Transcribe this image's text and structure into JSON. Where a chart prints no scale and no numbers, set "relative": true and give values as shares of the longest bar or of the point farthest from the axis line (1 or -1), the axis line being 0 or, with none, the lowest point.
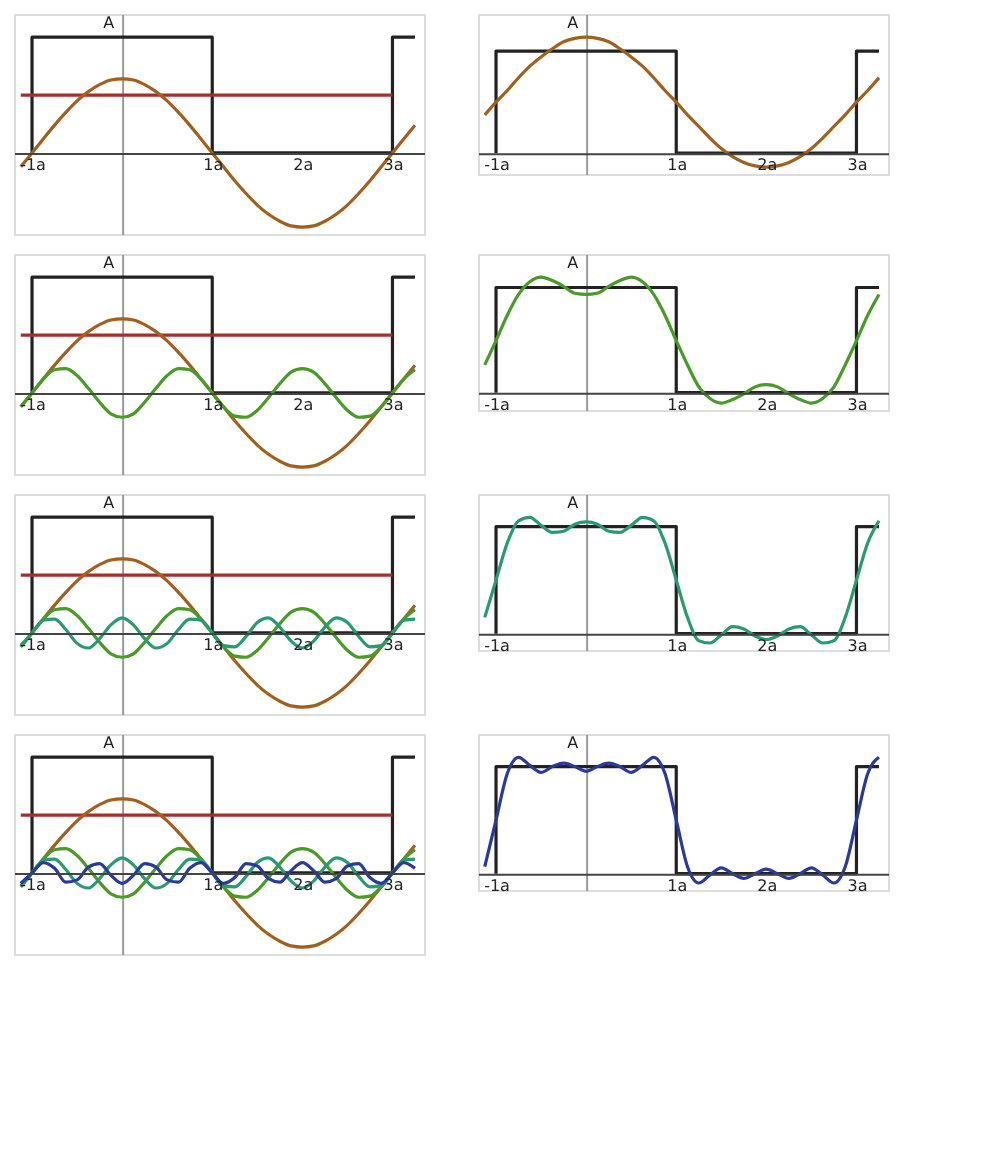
{
  "chart_data": [
    {
      "type": "line",
      "relative": true,
      "annotations": [
        "A"
      ],
      "x": [
        -1.125,
        -1,
        -0.875,
        -0.75,
        -0.625,
        -0.5,
        -0.375,
        -0.25,
        -0.125,
        0,
        0.125,
        0.25,
        0.375,
        0.5,
        0.625,
        0.75,
        0.875,
        1,
        1.125,
        1.25,
        1.375,
        1.5,
        1.625,
        1.75,
        1.875,
        2,
        2.125,
        2.25,
        2.375,
        2.5,
        2.625,
        2.75,
        2.875,
        3,
        3.125,
        3.25
      ],
      "xlim": [
        -1.2,
        3.35
      ],
      "xticks": [
        {
          "value": -1,
          "label": "-1a"
        },
        {
          "value": 1,
          "label": "1a"
        },
        {
          "value": 2,
          "label": "2a"
        },
        {
          "value": 3,
          "label": "3a"
        }
      ],
      "series": [
        {
          "color": "#222222",
          "x": [
            -1,
            -1,
            1,
            1,
            3,
            3,
            3.25
          ],
          "values": [
            0,
            1,
            1,
            0,
            0,
            1,
            1
          ]
        },
        {
          "color": "#a0322d",
          "x": [
            -1.125,
            3
          ],
          "values": [
            0.5,
            0.5
          ]
        },
        {
          "color": "#a0601e",
          "values": [
            -0.12,
            0,
            0.12,
            0.24,
            0.35,
            0.45,
            0.53,
            0.59,
            0.63,
            0.64,
            0.63,
            0.59,
            0.53,
            0.45,
            0.35,
            0.24,
            0.12,
            0,
            -0.12,
            -0.24,
            -0.35,
            -0.45,
            -0.53,
            -0.59,
            -0.63,
            -0.64,
            -0.63,
            -0.59,
            -0.53,
            -0.45,
            -0.35,
            -0.24,
            -0.12,
            0,
            0.12,
            0.24
          ]
        }
      ]
    },
    {
      "type": "line",
      "relative": true,
      "annotations": [
        "A"
      ],
      "x": [
        -1.125,
        -1,
        -0.875,
        -0.75,
        -0.625,
        -0.5,
        -0.375,
        -0.25,
        -0.125,
        0,
        0.125,
        0.25,
        0.375,
        0.5,
        0.625,
        0.75,
        0.875,
        1,
        1.125,
        1.25,
        1.375,
        1.5,
        1.625,
        1.75,
        1.875,
        2,
        2.125,
        2.25,
        2.375,
        2.5,
        2.625,
        2.75,
        2.875,
        3,
        3.125,
        3.25
      ],
      "xlim": [
        -1.2,
        3.35
      ],
      "xticks": [
        {
          "value": -1,
          "label": "-1a"
        },
        {
          "value": 1,
          "label": "1a"
        },
        {
          "value": 2,
          "label": "2a"
        },
        {
          "value": 3,
          "label": "3a"
        }
      ],
      "series": [
        {
          "color": "#222222",
          "x": [
            -1,
            -1,
            1,
            1,
            3,
            3,
            3.25
          ],
          "values": [
            0,
            0.88,
            0.88,
            0,
            0,
            0.88,
            0.88
          ]
        },
        {
          "color": "#a0601e",
          "values": [
            0.33,
            0.44,
            0.54,
            0.65,
            0.75,
            0.83,
            0.9,
            0.96,
            0.99,
            1,
            0.99,
            0.96,
            0.9,
            0.83,
            0.75,
            0.65,
            0.54,
            0.44,
            0.33,
            0.23,
            0.13,
            0.04,
            -0.03,
            -0.08,
            -0.11,
            -0.12,
            -0.11,
            -0.08,
            -0.03,
            0.04,
            0.13,
            0.23,
            0.33,
            0.44,
            0.54,
            0.65
          ]
        }
      ]
    },
    {
      "type": "line",
      "relative": true,
      "annotations": [
        "A"
      ],
      "x": [
        -1.125,
        -1,
        -0.875,
        -0.75,
        -0.625,
        -0.5,
        -0.375,
        -0.25,
        -0.125,
        0,
        0.125,
        0.25,
        0.375,
        0.5,
        0.625,
        0.75,
        0.875,
        1,
        1.125,
        1.25,
        1.375,
        1.5,
        1.625,
        1.75,
        1.875,
        2,
        2.125,
        2.25,
        2.375,
        2.5,
        2.625,
        2.75,
        2.875,
        3,
        3.125,
        3.25
      ],
      "xlim": [
        -1.2,
        3.35
      ],
      "xticks": [
        {
          "value": -1,
          "label": "-1a"
        },
        {
          "value": 1,
          "label": "1a"
        },
        {
          "value": 2,
          "label": "2a"
        },
        {
          "value": 3,
          "label": "3a"
        }
      ],
      "series": [
        {
          "color": "#222222",
          "x": [
            -1,
            -1,
            1,
            1,
            3,
            3,
            3.25
          ],
          "values": [
            0,
            1,
            1,
            0,
            0,
            1,
            1
          ]
        },
        {
          "color": "#a0322d",
          "x": [
            -1.125,
            3
          ],
          "values": [
            0.5,
            0.5
          ]
        },
        {
          "color": "#a0601e",
          "values": [
            -0.12,
            0,
            0.12,
            0.24,
            0.35,
            0.45,
            0.53,
            0.59,
            0.63,
            0.64,
            0.63,
            0.59,
            0.53,
            0.45,
            0.35,
            0.24,
            0.12,
            0,
            -0.12,
            -0.24,
            -0.35,
            -0.45,
            -0.53,
            -0.59,
            -0.63,
            -0.64,
            -0.63,
            -0.59,
            -0.53,
            -0.45,
            -0.35,
            -0.24,
            -0.12,
            0,
            0.12,
            0.24
          ]
        },
        {
          "color": "#4a9a2a",
          "values": [
            -0.12,
            0,
            0.12,
            0.2,
            0.21,
            0.15,
            0.04,
            -0.08,
            -0.18,
            -0.21,
            -0.18,
            -0.08,
            0.04,
            0.15,
            0.21,
            0.2,
            0.12,
            0,
            -0.12,
            -0.2,
            -0.21,
            -0.15,
            -0.04,
            0.08,
            0.18,
            0.21,
            0.18,
            0.08,
            -0.04,
            -0.15,
            -0.21,
            -0.2,
            -0.12,
            0,
            0.12,
            0.2
          ]
        }
      ]
    },
    {
      "type": "line",
      "relative": true,
      "annotations": [
        "A"
      ],
      "x": [
        -1.125,
        -1,
        -0.875,
        -0.75,
        -0.625,
        -0.5,
        -0.375,
        -0.25,
        -0.125,
        0,
        0.125,
        0.25,
        0.375,
        0.5,
        0.625,
        0.75,
        0.875,
        1,
        1.125,
        1.25,
        1.375,
        1.5,
        1.625,
        1.75,
        1.875,
        2,
        2.125,
        2.25,
        2.375,
        2.5,
        2.625,
        2.75,
        2.875,
        3,
        3.125,
        3.25
      ],
      "xlim": [
        -1.2,
        3.35
      ],
      "xticks": [
        {
          "value": -1,
          "label": "-1a"
        },
        {
          "value": 1,
          "label": "1a"
        },
        {
          "value": 2,
          "label": "2a"
        },
        {
          "value": 3,
          "label": "3a"
        }
      ],
      "series": [
        {
          "color": "#222222",
          "x": [
            -1,
            -1,
            1,
            1,
            3,
            3,
            3.25
          ],
          "values": [
            0,
            0.91,
            0.91,
            0,
            0,
            0.91,
            0.91
          ]
        },
        {
          "color": "#4a9a2a",
          "values": [
            0.24,
            0.45,
            0.67,
            0.85,
            0.96,
            1,
            0.97,
            0.92,
            0.86,
            0.85,
            0.86,
            0.92,
            0.97,
            1,
            0.96,
            0.85,
            0.67,
            0.45,
            0.24,
            0.05,
            -0.05,
            -0.09,
            -0.06,
            -0.01,
            0.05,
            0.07,
            0.05,
            -0.01,
            -0.06,
            -0.09,
            -0.05,
            0.05,
            0.24,
            0.45,
            0.67,
            0.85
          ]
        }
      ]
    },
    {
      "type": "line",
      "relative": true,
      "annotations": [
        "A"
      ],
      "x": [
        -1.125,
        -1,
        -0.875,
        -0.75,
        -0.625,
        -0.5,
        -0.375,
        -0.25,
        -0.125,
        0,
        0.125,
        0.25,
        0.375,
        0.5,
        0.625,
        0.75,
        0.875,
        1,
        1.125,
        1.25,
        1.375,
        1.5,
        1.625,
        1.75,
        1.875,
        2,
        2.125,
        2.25,
        2.375,
        2.5,
        2.625,
        2.75,
        2.875,
        3,
        3.125,
        3.25
      ],
      "xlim": [
        -1.2,
        3.35
      ],
      "xticks": [
        {
          "value": -1,
          "label": "-1a"
        },
        {
          "value": 1,
          "label": "1a"
        },
        {
          "value": 2,
          "label": "2a"
        },
        {
          "value": 3,
          "label": "3a"
        }
      ],
      "series": [
        {
          "color": "#222222",
          "x": [
            -1,
            -1,
            1,
            1,
            3,
            3,
            3.25
          ],
          "values": [
            0,
            1,
            1,
            0,
            0,
            1,
            1
          ]
        },
        {
          "color": "#a0322d",
          "x": [
            -1.125,
            3
          ],
          "values": [
            0.5,
            0.5
          ]
        },
        {
          "color": "#a0601e",
          "values": [
            -0.12,
            0,
            0.12,
            0.24,
            0.35,
            0.45,
            0.53,
            0.59,
            0.63,
            0.64,
            0.63,
            0.59,
            0.53,
            0.45,
            0.35,
            0.24,
            0.12,
            0,
            -0.12,
            -0.24,
            -0.35,
            -0.45,
            -0.53,
            -0.59,
            -0.63,
            -0.64,
            -0.63,
            -0.59,
            -0.53,
            -0.45,
            -0.35,
            -0.24,
            -0.12,
            0,
            0.12,
            0.24
          ]
        },
        {
          "color": "#4a9a2a",
          "values": [
            -0.12,
            0,
            0.12,
            0.2,
            0.21,
            0.15,
            0.04,
            -0.08,
            -0.18,
            -0.21,
            -0.18,
            -0.08,
            0.04,
            0.15,
            0.21,
            0.2,
            0.12,
            0,
            -0.12,
            -0.2,
            -0.21,
            -0.15,
            -0.04,
            0.08,
            0.18,
            0.21,
            0.18,
            0.08,
            -0.04,
            -0.15,
            -0.21,
            -0.2,
            -0.12,
            0,
            0.12,
            0.2
          ]
        },
        {
          "color": "#2a9a70",
          "values": [
            -0.11,
            0,
            0.11,
            0.12,
            0.03,
            -0.09,
            -0.13,
            -0.05,
            0.07,
            0.13,
            0.07,
            -0.05,
            -0.13,
            -0.09,
            0.03,
            0.12,
            0.11,
            0,
            -0.11,
            -0.12,
            -0.03,
            0.09,
            0.13,
            0.05,
            -0.07,
            -0.13,
            -0.07,
            0.05,
            0.13,
            0.09,
            -0.03,
            -0.12,
            -0.11,
            0,
            0.11,
            0.12
          ]
        }
      ]
    },
    {
      "type": "line",
      "relative": true,
      "annotations": [
        "A"
      ],
      "x": [
        -1.125,
        -1,
        -0.875,
        -0.75,
        -0.625,
        -0.5,
        -0.375,
        -0.25,
        -0.125,
        0,
        0.125,
        0.25,
        0.375,
        0.5,
        0.625,
        0.75,
        0.875,
        1,
        1.125,
        1.25,
        1.375,
        1.5,
        1.625,
        1.75,
        1.875,
        2,
        2.125,
        2.25,
        2.375,
        2.5,
        2.625,
        2.75,
        2.875,
        3,
        3.125,
        3.25
      ],
      "xlim": [
        -1.2,
        3.35
      ],
      "xticks": [
        {
          "value": -1,
          "label": "-1a"
        },
        {
          "value": 1,
          "label": "1a"
        },
        {
          "value": 2,
          "label": "2a"
        },
        {
          "value": 3,
          "label": "3a"
        }
      ],
      "series": [
        {
          "color": "#222222",
          "x": [
            -1,
            -1,
            1,
            1,
            3,
            3,
            3.25
          ],
          "values": [
            0,
            0.92,
            0.92,
            0,
            0,
            0.92,
            0.92
          ]
        },
        {
          "color": "#2a9a70",
          "values": [
            0.14,
            0.46,
            0.78,
            0.97,
            1,
            0.93,
            0.87,
            0.88,
            0.94,
            0.96,
            0.94,
            0.88,
            0.87,
            0.93,
            1,
            0.97,
            0.78,
            0.46,
            0.14,
            -0.06,
            -0.08,
            -0.01,
            0.06,
            0.04,
            -0.02,
            -0.05,
            -0.02,
            0.04,
            0.06,
            -0.01,
            -0.08,
            -0.06,
            0.14,
            0.46,
            0.78,
            0.97
          ]
        }
      ]
    },
    {
      "type": "line",
      "relative": true,
      "annotations": [
        "A"
      ],
      "x": [
        -1.125,
        -1,
        -0.875,
        -0.75,
        -0.625,
        -0.5,
        -0.375,
        -0.25,
        -0.125,
        0,
        0.125,
        0.25,
        0.375,
        0.5,
        0.625,
        0.75,
        0.875,
        1,
        1.125,
        1.25,
        1.375,
        1.5,
        1.625,
        1.75,
        1.875,
        2,
        2.125,
        2.25,
        2.375,
        2.5,
        2.625,
        2.75,
        2.875,
        3,
        3.125,
        3.25
      ],
      "xlim": [
        -1.2,
        3.35
      ],
      "xticks": [
        {
          "value": -1,
          "label": "-1a"
        },
        {
          "value": 1,
          "label": "1a"
        },
        {
          "value": 2,
          "label": "2a"
        },
        {
          "value": 3,
          "label": "3a"
        }
      ],
      "series": [
        {
          "color": "#222222",
          "x": [
            -1,
            -1,
            1,
            1,
            3,
            3,
            3.25
          ],
          "values": [
            0,
            1,
            1,
            0,
            0,
            1,
            1
          ]
        },
        {
          "color": "#a0322d",
          "x": [
            -1.125,
            3
          ],
          "values": [
            0.5,
            0.5
          ]
        },
        {
          "color": "#a0601e",
          "values": [
            -0.12,
            0,
            0.12,
            0.24,
            0.35,
            0.45,
            0.53,
            0.59,
            0.63,
            0.64,
            0.63,
            0.59,
            0.53,
            0.45,
            0.35,
            0.24,
            0.12,
            0,
            -0.12,
            -0.24,
            -0.35,
            -0.45,
            -0.53,
            -0.59,
            -0.63,
            -0.64,
            -0.63,
            -0.59,
            -0.53,
            -0.45,
            -0.35,
            -0.24,
            -0.12,
            0,
            0.12,
            0.24
          ]
        },
        {
          "color": "#4a9a2a",
          "values": [
            -0.12,
            0,
            0.12,
            0.2,
            0.21,
            0.15,
            0.04,
            -0.08,
            -0.18,
            -0.21,
            -0.18,
            -0.08,
            0.04,
            0.15,
            0.21,
            0.2,
            0.12,
            0,
            -0.12,
            -0.2,
            -0.21,
            -0.15,
            -0.04,
            0.08,
            0.18,
            0.21,
            0.18,
            0.08,
            -0.04,
            -0.15,
            -0.21,
            -0.2,
            -0.12,
            0,
            0.12,
            0.2
          ]
        },
        {
          "color": "#2a9a70",
          "values": [
            -0.11,
            0,
            0.11,
            0.12,
            0.03,
            -0.09,
            -0.13,
            -0.05,
            0.07,
            0.13,
            0.07,
            -0.05,
            -0.13,
            -0.09,
            0.03,
            0.12,
            0.11,
            0,
            -0.11,
            -0.12,
            -0.03,
            0.09,
            0.13,
            0.05,
            -0.07,
            -0.13,
            -0.07,
            0.05,
            0.13,
            0.09,
            -0.03,
            -0.12,
            -0.11,
            0,
            0.11,
            0.12
          ]
        },
        {
          "color": "#2a3a9a",
          "values": [
            -0.09,
            0,
            0.09,
            0.04,
            -0.08,
            -0.06,
            0.05,
            0.08,
            -0.02,
            -0.09,
            -0.02,
            0.08,
            0.05,
            -0.06,
            -0.08,
            0.04,
            0.09,
            0,
            -0.09,
            -0.04,
            0.08,
            0.06,
            -0.05,
            -0.08,
            0.02,
            0.09,
            0.02,
            -0.08,
            -0.05,
            0.06,
            0.08,
            -0.04,
            -0.09,
            0,
            0.09,
            0.04
          ]
        }
      ]
    },
    {
      "type": "line",
      "relative": true,
      "annotations": [
        "A"
      ],
      "x": [
        -1.125,
        -1,
        -0.875,
        -0.75,
        -0.625,
        -0.5,
        -0.375,
        -0.25,
        -0.125,
        0,
        0.125,
        0.25,
        0.375,
        0.5,
        0.625,
        0.75,
        0.875,
        1,
        1.125,
        1.25,
        1.375,
        1.5,
        1.625,
        1.75,
        1.875,
        2,
        2.125,
        2.25,
        2.375,
        2.5,
        2.625,
        2.75,
        2.875,
        3,
        3.125,
        3.25
      ],
      "xlim": [
        -1.2,
        3.35
      ],
      "xticks": [
        {
          "value": -1,
          "label": "-1a"
        },
        {
          "value": 1,
          "label": "1a"
        },
        {
          "value": 2,
          "label": "2a"
        },
        {
          "value": 3,
          "label": "3a"
        }
      ],
      "series": [
        {
          "color": "#222222",
          "x": [
            -1,
            -1,
            1,
            1,
            3,
            3,
            3.25
          ],
          "values": [
            0,
            0.92,
            0.92,
            0,
            0,
            0.92,
            0.92
          ]
        },
        {
          "color": "#2a3a9a",
          "values": [
            0.06,
            0.46,
            0.86,
            1,
            0.93,
            0.87,
            0.92,
            0.95,
            0.92,
            0.88,
            0.92,
            0.95,
            0.92,
            0.87,
            0.93,
            1,
            0.86,
            0.46,
            0.06,
            -0.08,
            -0.01,
            0.05,
            0,
            -0.04,
            0,
            0.04,
            0,
            -0.04,
            0,
            0.05,
            -0.01,
            -0.08,
            0.06,
            0.46,
            0.86,
            1
          ]
        }
      ]
    }
  ]
}
